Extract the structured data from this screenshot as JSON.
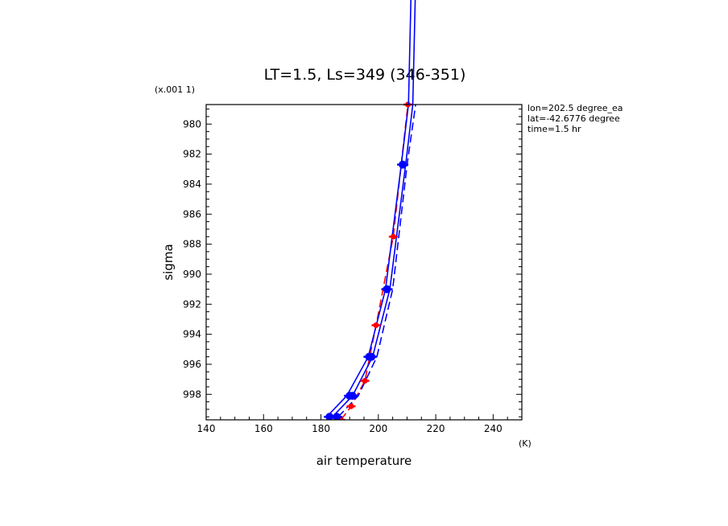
{
  "chart_data": {
    "type": "line",
    "title": "LT=1.5, Ls=349 (346-351)",
    "xlabel": "air temperature",
    "ylabel": "sigma",
    "x_unit": "(K)",
    "y_scale_note": "(x.001 1)",
    "xlim": [
      140,
      250
    ],
    "ylim": [
      999.7,
      978.7
    ],
    "xticks": [
      140,
      160,
      180,
      200,
      220,
      240
    ],
    "yticks": [
      980,
      982,
      984,
      986,
      988,
      990,
      992,
      994,
      996,
      998
    ],
    "annotations": [
      "lon=202.5 degree_ea",
      "lat=-42.6776 degree",
      "time=1.5 hr"
    ],
    "series": [
      {
        "color": "#ff0000",
        "style": "dashed",
        "points": [
          [
            187.0,
            999.7
          ],
          [
            190.5,
            998.8
          ],
          [
            195.3,
            997.1
          ],
          [
            199.2,
            993.4
          ],
          [
            205.2,
            987.5
          ],
          [
            210.3,
            978.7
          ]
        ]
      },
      {
        "color": "#0000ff",
        "style": "solid",
        "points": [
          [
            182.0,
            999.5
          ],
          [
            189.0,
            998.1
          ],
          [
            196.5,
            995.5
          ],
          [
            202.5,
            991.0
          ],
          [
            208.0,
            982.7
          ],
          [
            210.5,
            978.7
          ]
        ]
      },
      {
        "color": "#0000ff",
        "style": "solid",
        "points": [
          [
            184.0,
            999.5
          ],
          [
            191.0,
            998.1
          ],
          [
            198.0,
            995.5
          ],
          [
            204.0,
            991.0
          ],
          [
            209.5,
            982.7
          ],
          [
            212.0,
            978.7
          ]
        ]
      },
      {
        "color": "#0000ff",
        "style": "dashed",
        "points": [
          [
            186.0,
            999.5
          ],
          [
            193.0,
            998.1
          ],
          [
            199.5,
            995.5
          ],
          [
            205.0,
            991.0
          ],
          [
            210.0,
            982.7
          ],
          [
            213.0,
            978.7
          ]
        ]
      }
    ],
    "markers": [
      {
        "color": "#ff0000",
        "points": [
          [
            187.0,
            999.7
          ],
          [
            190.5,
            998.8
          ],
          [
            195.3,
            997.1
          ],
          [
            199.2,
            993.4
          ],
          [
            205.2,
            987.5
          ],
          [
            210.3,
            978.7
          ]
        ]
      },
      {
        "color": "#0000ff",
        "points": [
          [
            183.0,
            999.5
          ],
          [
            185.5,
            999.5
          ],
          [
            190.0,
            998.1
          ],
          [
            191.0,
            998.1
          ],
          [
            196.8,
            995.5
          ],
          [
            197.6,
            995.5
          ],
          [
            203.0,
            991.0
          ],
          [
            208.5,
            982.7
          ]
        ]
      }
    ]
  }
}
